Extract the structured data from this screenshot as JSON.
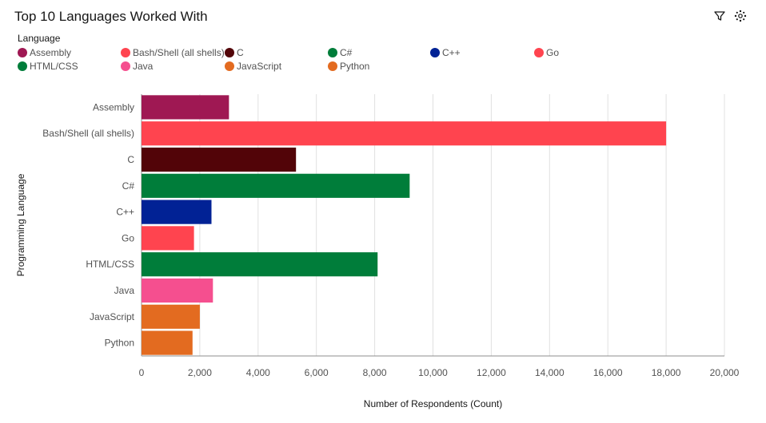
{
  "header": {
    "title": "Top 10 Languages Worked With"
  },
  "toolbar": {
    "filter_icon": "filter-icon",
    "settings_icon": "settings-icon"
  },
  "legend": {
    "title": "Language",
    "placement": "top-left"
  },
  "chart_data": {
    "type": "bar",
    "orientation": "horizontal",
    "title": "Top 10 Languages Worked With",
    "xlabel": "Number of Respondents (Count)",
    "ylabel": "Programming Language",
    "xlim": [
      0,
      20000
    ],
    "xticks": [
      "0",
      "2,000",
      "4,000",
      "6,000",
      "8,000",
      "10,000",
      "12,000",
      "14,000",
      "16,000",
      "18,000",
      "20,000"
    ],
    "grid": true,
    "categories": [
      "Assembly",
      "Bash/Shell (all shells)",
      "C",
      "C#",
      "C++",
      "Go",
      "HTML/CSS",
      "Java",
      "JavaScript",
      "Python"
    ],
    "values": [
      3000,
      18000,
      5300,
      9200,
      2400,
      1800,
      8100,
      2450,
      2000,
      1750
    ],
    "colors": [
      "#9f1853",
      "#ff444f",
      "#520408",
      "#007d3a",
      "#012295",
      "#ff444f",
      "#007d3a",
      "#f54f8f",
      "#e36b20",
      "#e36b20"
    ]
  }
}
